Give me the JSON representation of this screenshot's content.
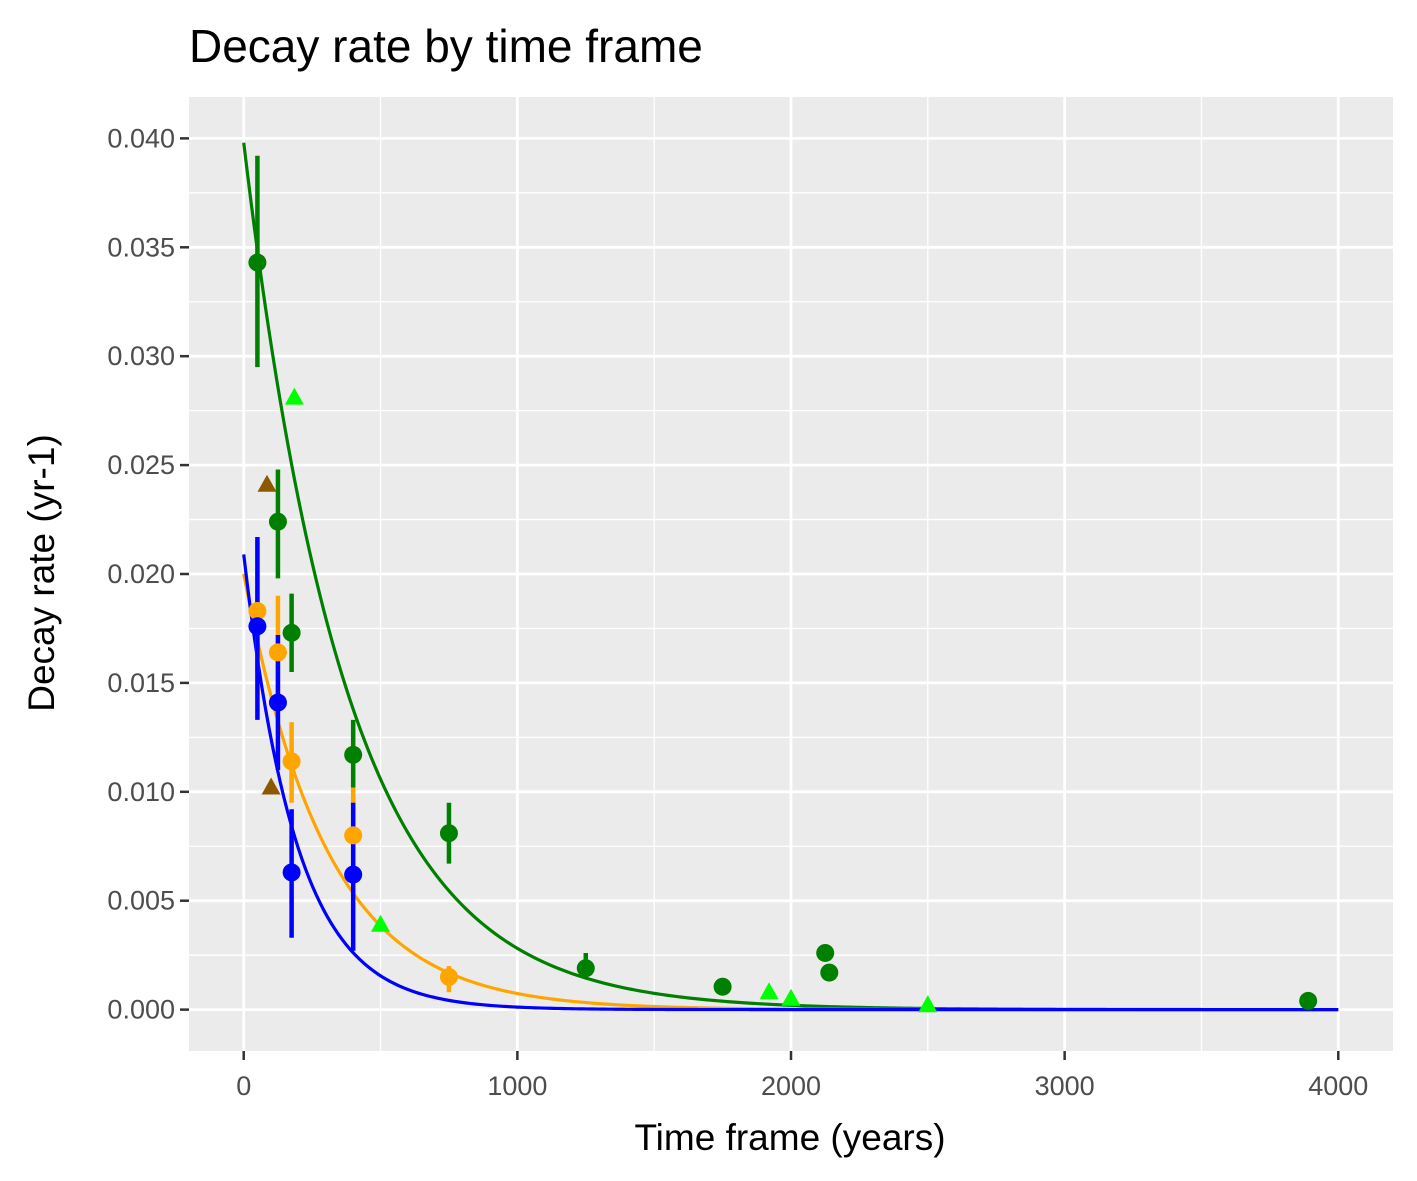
{
  "chart_data": {
    "type": "scatter",
    "title": "Decay rate by time frame",
    "xlabel": "Time frame (years)",
    "ylabel": "Decay rate (yr-1)",
    "xlim": [
      -200,
      4200
    ],
    "ylim": [
      -0.0019,
      0.0419
    ],
    "x_ticks": [
      0,
      1000,
      2000,
      3000,
      4000
    ],
    "x_tick_labels": [
      "0",
      "1000",
      "2000",
      "3000",
      "4000"
    ],
    "y_ticks": [
      0,
      0.005,
      0.01,
      0.015,
      0.02,
      0.025,
      0.03,
      0.035,
      0.04
    ],
    "y_tick_labels": [
      "0.000",
      "0.005",
      "0.010",
      "0.015",
      "0.020",
      "0.025",
      "0.030",
      "0.035",
      "0.040"
    ],
    "grid": true,
    "legend": "none",
    "colors": {
      "panel": "#ebebeb",
      "grid": "#ffffff",
      "green": "#008000",
      "orange": "#ffa500",
      "blue": "#0000ff",
      "lime": "#00ff00",
      "brown": "#8b5a00"
    },
    "series": [
      {
        "color": "#008000",
        "marker": "circle",
        "points": [
          {
            "x": 50,
            "y": 0.0343,
            "lo": 0.0295,
            "hi": 0.0392
          },
          {
            "x": 125,
            "y": 0.0224,
            "lo": 0.0198,
            "hi": 0.0248
          },
          {
            "x": 175,
            "y": 0.0173,
            "lo": 0.0155,
            "hi": 0.0191
          },
          {
            "x": 400,
            "y": 0.0117,
            "lo": 0.0102,
            "hi": 0.0133
          },
          {
            "x": 750,
            "y": 0.0081,
            "lo": 0.0067,
            "hi": 0.0095
          },
          {
            "x": 1250,
            "y": 0.0019,
            "lo": 0.0015,
            "hi": 0.0026
          },
          {
            "x": 1750,
            "y": 0.00105,
            "lo": 0.0009,
            "hi": 0.0012
          },
          {
            "x": 2125,
            "y": 0.0026
          },
          {
            "x": 2140,
            "y": 0.0017
          },
          {
            "x": 3890,
            "y": 0.0004
          }
        ]
      },
      {
        "color": "#ffa500",
        "marker": "circle",
        "points": [
          {
            "x": 50,
            "y": 0.0183,
            "lo": 0.0155,
            "hi": 0.0215
          },
          {
            "x": 125,
            "y": 0.0164,
            "lo": 0.014,
            "hi": 0.019
          },
          {
            "x": 175,
            "y": 0.0114,
            "lo": 0.0095,
            "hi": 0.0132
          },
          {
            "x": 400,
            "y": 0.008,
            "lo": 0.006,
            "hi": 0.0102
          },
          {
            "x": 750,
            "y": 0.0015,
            "lo": 0.0008,
            "hi": 0.002
          }
        ]
      },
      {
        "color": "#0000ff",
        "marker": "circle",
        "points": [
          {
            "x": 50,
            "y": 0.0176,
            "lo": 0.0133,
            "hi": 0.0217
          },
          {
            "x": 125,
            "y": 0.0141,
            "lo": 0.011,
            "hi": 0.0172
          },
          {
            "x": 175,
            "y": 0.0063,
            "lo": 0.0033,
            "hi": 0.0092
          },
          {
            "x": 400,
            "y": 0.0062,
            "lo": 0.0027,
            "hi": 0.0095
          }
        ]
      },
      {
        "color": "#00ff00",
        "marker": "triangle",
        "points": [
          {
            "x": 185,
            "y": 0.0281
          },
          {
            "x": 500,
            "y": 0.0039
          },
          {
            "x": 1920,
            "y": 0.0008
          },
          {
            "x": 2000,
            "y": 0.0005
          },
          {
            "x": 2500,
            "y": 0.0002
          }
        ]
      },
      {
        "color": "#8b5a00",
        "marker": "triangle",
        "points": [
          {
            "x": 85,
            "y": 0.0241
          },
          {
            "x": 100,
            "y": 0.0102
          }
        ]
      }
    ],
    "fits": [
      {
        "color": "#008000",
        "a": 0.0398,
        "k": 0.00265,
        "x_start": 0,
        "x_end": 4000
      },
      {
        "color": "#ffa500",
        "a": 0.02,
        "k": 0.0033,
        "x_start": 0,
        "x_end": 4000
      },
      {
        "color": "#0000ff",
        "a": 0.0209,
        "k": 0.0052,
        "x_start": 0,
        "x_end": 4000
      }
    ]
  }
}
